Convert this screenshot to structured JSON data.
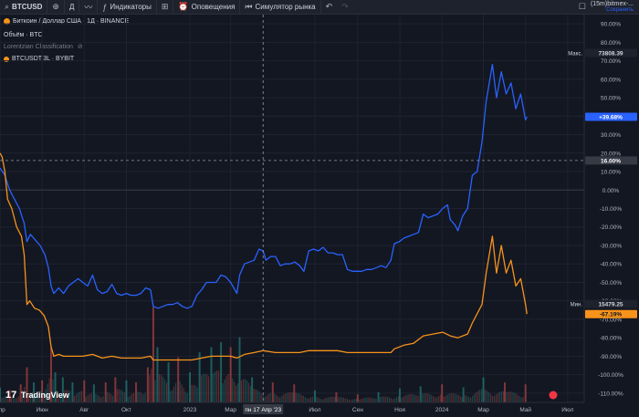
{
  "toolbar": {
    "symbol": "BTCUSD",
    "add_icon": "plus-circle-icon",
    "interval": "Д",
    "chart_type_icon": "line-chart-icon",
    "indicators_label": "Индикаторы",
    "templates_icon": "grid-icon",
    "alerts_label": "Оповещения",
    "replay_label": "Симулятор рынка",
    "undo_icon": "undo-icon",
    "redo_icon": "redo-icon",
    "layout_icon": "square-icon",
    "account_name": "(15m)bitmex-...",
    "save_label": "Сохранить"
  },
  "legend": {
    "main": "Биткоин / Доллар США · 1Д · BINANCE",
    "volume": "Объём · BTC",
    "indicator": "Lorentzian Classification",
    "compare": "BTCUSDT.3L · BYBIT"
  },
  "badges": {
    "max_label": "Макс.",
    "max_value": "73808.39",
    "min_label": "Мин.",
    "min_value": "15479.25",
    "blue_value": "+39.68%",
    "orange_value": "-67.19%",
    "crosshair_value": "16.00%",
    "crosshair_date": "пн 17 Апр '23"
  },
  "branding": "TradingView",
  "chart_data": {
    "type": "line",
    "yaxis_scale": "percent",
    "ylim": [
      -115,
      95
    ],
    "yticks": [
      "90.00%",
      "80.00%",
      "70.00%",
      "60.00%",
      "50.00%",
      "40.00%",
      "30.00%",
      "20.00%",
      "10.00%",
      "0.00%",
      "-10.00%",
      "-20.00%",
      "-30.00%",
      "-40.00%",
      "-50.00%",
      "-60.00%",
      "-70.00%",
      "-80.00%",
      "-90.00%",
      "-100.00%",
      "-110.00%"
    ],
    "ytick_values": [
      90,
      80,
      70,
      60,
      50,
      40,
      30,
      20,
      10,
      0,
      -10,
      -20,
      -30,
      -40,
      -50,
      -60,
      -70,
      -80,
      -90,
      -100,
      -110
    ],
    "x_range": [
      "2022-04-01",
      "2024-07-25"
    ],
    "xticks": [
      {
        "label": "Апр",
        "date": "2022-04-01"
      },
      {
        "label": "Июн",
        "date": "2022-06-01"
      },
      {
        "label": "Авг",
        "date": "2022-08-01"
      },
      {
        "label": "Окт",
        "date": "2022-10-01"
      },
      {
        "label": "2023",
        "date": "2023-01-01"
      },
      {
        "label": "Мар",
        "date": "2023-03-01"
      },
      {
        "label": "Июл",
        "date": "2023-07-01"
      },
      {
        "label": "Сен",
        "date": "2023-09-01"
      },
      {
        "label": "Ноя",
        "date": "2023-11-01"
      },
      {
        "label": "2024",
        "date": "2024-01-01"
      },
      {
        "label": "Мар",
        "date": "2024-03-01"
      },
      {
        "label": "Май",
        "date": "2024-05-01"
      },
      {
        "label": "Июл",
        "date": "2024-07-01"
      }
    ],
    "crosshair": {
      "date": "2023-04-17",
      "value": 16
    },
    "grid": true,
    "series": [
      {
        "name": "Биткоин / Доллар США",
        "color": "#2962ff",
        "points": [
          [
            "2022-04-01",
            12
          ],
          [
            "2022-04-08",
            8
          ],
          [
            "2022-04-15",
            0
          ],
          [
            "2022-04-22",
            -5
          ],
          [
            "2022-04-29",
            -10
          ],
          [
            "2022-05-06",
            -18
          ],
          [
            "2022-05-10",
            -28
          ],
          [
            "2022-05-15",
            -24
          ],
          [
            "2022-05-22",
            -27
          ],
          [
            "2022-05-29",
            -30
          ],
          [
            "2022-06-05",
            -35
          ],
          [
            "2022-06-10",
            -42
          ],
          [
            "2022-06-14",
            -52
          ],
          [
            "2022-06-18",
            -56
          ],
          [
            "2022-06-25",
            -53
          ],
          [
            "2022-07-02",
            -56
          ],
          [
            "2022-07-09",
            -52
          ],
          [
            "2022-07-16",
            -50
          ],
          [
            "2022-07-23",
            -48
          ],
          [
            "2022-07-30",
            -50
          ],
          [
            "2022-08-06",
            -52
          ],
          [
            "2022-08-13",
            -46
          ],
          [
            "2022-08-20",
            -54
          ],
          [
            "2022-08-27",
            -56
          ],
          [
            "2022-09-03",
            -55
          ],
          [
            "2022-09-10",
            -51
          ],
          [
            "2022-09-17",
            -56
          ],
          [
            "2022-09-24",
            -57
          ],
          [
            "2022-10-01",
            -56
          ],
          [
            "2022-10-08",
            -57
          ],
          [
            "2022-10-15",
            -57
          ],
          [
            "2022-10-22",
            -56
          ],
          [
            "2022-10-29",
            -53
          ],
          [
            "2022-11-05",
            -54
          ],
          [
            "2022-11-09",
            -63
          ],
          [
            "2022-11-16",
            -64
          ],
          [
            "2022-11-23",
            -63
          ],
          [
            "2022-11-30",
            -62
          ],
          [
            "2022-12-07",
            -62
          ],
          [
            "2022-12-14",
            -61
          ],
          [
            "2022-12-21",
            -63
          ],
          [
            "2022-12-28",
            -64
          ],
          [
            "2023-01-04",
            -63
          ],
          [
            "2023-01-11",
            -57
          ],
          [
            "2023-01-18",
            -54
          ],
          [
            "2023-01-25",
            -50
          ],
          [
            "2023-02-01",
            -50
          ],
          [
            "2023-02-08",
            -50
          ],
          [
            "2023-02-15",
            -46
          ],
          [
            "2023-02-22",
            -47
          ],
          [
            "2023-03-01",
            -50
          ],
          [
            "2023-03-10",
            -56
          ],
          [
            "2023-03-14",
            -46
          ],
          [
            "2023-03-21",
            -40
          ],
          [
            "2023-03-28",
            -39
          ],
          [
            "2023-04-04",
            -38
          ],
          [
            "2023-04-11",
            -32
          ],
          [
            "2023-04-17",
            -33
          ],
          [
            "2023-04-21",
            -38
          ],
          [
            "2023-04-28",
            -36
          ],
          [
            "2023-05-05",
            -36
          ],
          [
            "2023-05-12",
            -41
          ],
          [
            "2023-05-19",
            -40
          ],
          [
            "2023-05-26",
            -40
          ],
          [
            "2023-06-02",
            -39
          ],
          [
            "2023-06-09",
            -41
          ],
          [
            "2023-06-15",
            -44
          ],
          [
            "2023-06-22",
            -33
          ],
          [
            "2023-06-29",
            -32
          ],
          [
            "2023-07-06",
            -33
          ],
          [
            "2023-07-13",
            -31
          ],
          [
            "2023-07-20",
            -34
          ],
          [
            "2023-07-27",
            -34
          ],
          [
            "2023-08-03",
            -35
          ],
          [
            "2023-08-10",
            -35
          ],
          [
            "2023-08-17",
            -43
          ],
          [
            "2023-08-24",
            -44
          ],
          [
            "2023-08-31",
            -44
          ],
          [
            "2023-09-07",
            -44
          ],
          [
            "2023-09-14",
            -43
          ],
          [
            "2023-09-21",
            -43
          ],
          [
            "2023-09-28",
            -42
          ],
          [
            "2023-10-05",
            -41
          ],
          [
            "2023-10-12",
            -42
          ],
          [
            "2023-10-19",
            -38
          ],
          [
            "2023-10-24",
            -29
          ],
          [
            "2023-10-31",
            -28
          ],
          [
            "2023-11-07",
            -26
          ],
          [
            "2023-11-14",
            -25
          ],
          [
            "2023-11-21",
            -24
          ],
          [
            "2023-11-28",
            -23
          ],
          [
            "2023-12-05",
            -13
          ],
          [
            "2023-12-12",
            -15
          ],
          [
            "2023-12-19",
            -14
          ],
          [
            "2023-12-26",
            -13
          ],
          [
            "2024-01-02",
            -10
          ],
          [
            "2024-01-09",
            -8
          ],
          [
            "2024-01-13",
            -16
          ],
          [
            "2024-01-20",
            -19
          ],
          [
            "2024-01-24",
            -22
          ],
          [
            "2024-01-31",
            -14
          ],
          [
            "2024-02-07",
            -10
          ],
          [
            "2024-02-14",
            8
          ],
          [
            "2024-02-21",
            10
          ],
          [
            "2024-02-28",
            26
          ],
          [
            "2024-03-05",
            48
          ],
          [
            "2024-03-14",
            68
          ],
          [
            "2024-03-20",
            50
          ],
          [
            "2024-03-27",
            64
          ],
          [
            "2024-04-03",
            52
          ],
          [
            "2024-04-10",
            58
          ],
          [
            "2024-04-17",
            44
          ],
          [
            "2024-04-24",
            52
          ],
          [
            "2024-05-01",
            38
          ],
          [
            "2024-05-03",
            39.68
          ]
        ]
      },
      {
        "name": "BTCUSDT.3L",
        "color": "#f7931a",
        "points": [
          [
            "2022-04-01",
            20
          ],
          [
            "2022-04-04",
            18
          ],
          [
            "2022-04-08",
            10
          ],
          [
            "2022-04-12",
            -5
          ],
          [
            "2022-04-18",
            -10
          ],
          [
            "2022-04-25",
            -20
          ],
          [
            "2022-05-02",
            -25
          ],
          [
            "2022-05-06",
            -35
          ],
          [
            "2022-05-10",
            -62
          ],
          [
            "2022-05-14",
            -60
          ],
          [
            "2022-05-21",
            -64
          ],
          [
            "2022-05-28",
            -65
          ],
          [
            "2022-06-04",
            -68
          ],
          [
            "2022-06-10",
            -74
          ],
          [
            "2022-06-14",
            -85
          ],
          [
            "2022-06-18",
            -90
          ],
          [
            "2022-06-25",
            -89
          ],
          [
            "2022-07-02",
            -90
          ],
          [
            "2022-07-16",
            -90
          ],
          [
            "2022-07-30",
            -90
          ],
          [
            "2022-08-13",
            -89
          ],
          [
            "2022-08-27",
            -91
          ],
          [
            "2022-09-10",
            -90
          ],
          [
            "2022-09-24",
            -91
          ],
          [
            "2022-10-08",
            -91
          ],
          [
            "2022-10-22",
            -91
          ],
          [
            "2022-11-05",
            -90
          ],
          [
            "2022-11-09",
            -92
          ],
          [
            "2022-11-23",
            -92
          ],
          [
            "2022-12-07",
            -92
          ],
          [
            "2022-12-21",
            -92
          ],
          [
            "2023-01-04",
            -92
          ],
          [
            "2023-01-18",
            -91
          ],
          [
            "2023-02-01",
            -90
          ],
          [
            "2023-02-15",
            -90
          ],
          [
            "2023-03-01",
            -90
          ],
          [
            "2023-03-10",
            -91
          ],
          [
            "2023-03-21",
            -89
          ],
          [
            "2023-04-04",
            -88
          ],
          [
            "2023-04-17",
            -87
          ],
          [
            "2023-05-05",
            -88
          ],
          [
            "2023-05-19",
            -88
          ],
          [
            "2023-06-09",
            -88
          ],
          [
            "2023-06-22",
            -87
          ],
          [
            "2023-07-13",
            -87
          ],
          [
            "2023-08-03",
            -87
          ],
          [
            "2023-08-17",
            -88
          ],
          [
            "2023-09-07",
            -88
          ],
          [
            "2023-09-28",
            -88
          ],
          [
            "2023-10-19",
            -88
          ],
          [
            "2023-10-24",
            -86
          ],
          [
            "2023-11-07",
            -84
          ],
          [
            "2023-11-21",
            -83
          ],
          [
            "2023-12-05",
            -79
          ],
          [
            "2023-12-19",
            -78
          ],
          [
            "2024-01-02",
            -77
          ],
          [
            "2024-01-13",
            -79
          ],
          [
            "2024-01-24",
            -80
          ],
          [
            "2024-02-07",
            -78
          ],
          [
            "2024-02-14",
            -72
          ],
          [
            "2024-02-28",
            -62
          ],
          [
            "2024-03-05",
            -45
          ],
          [
            "2024-03-14",
            -25
          ],
          [
            "2024-03-20",
            -45
          ],
          [
            "2024-03-27",
            -30
          ],
          [
            "2024-04-03",
            -45
          ],
          [
            "2024-04-10",
            -38
          ],
          [
            "2024-04-17",
            -52
          ],
          [
            "2024-04-24",
            -48
          ],
          [
            "2024-05-01",
            -62
          ],
          [
            "2024-05-03",
            -67.19
          ]
        ]
      }
    ],
    "volume": {
      "name": "Объём",
      "colors": {
        "up": "#26a69a",
        "down": "#ef5350"
      },
      "max_pct_of_pane": 1,
      "bars": [
        [
          "2022-04-01",
          0.15,
          1
        ],
        [
          "2022-04-15",
          0.12,
          0
        ],
        [
          "2022-05-01",
          0.18,
          0
        ],
        [
          "2022-05-10",
          0.35,
          0
        ],
        [
          "2022-05-20",
          0.2,
          1
        ],
        [
          "2022-06-01",
          0.22,
          0
        ],
        [
          "2022-06-14",
          0.55,
          0
        ],
        [
          "2022-06-20",
          0.3,
          1
        ],
        [
          "2022-07-01",
          0.25,
          1
        ],
        [
          "2022-07-15",
          0.2,
          1
        ],
        [
          "2022-08-01",
          0.22,
          0
        ],
        [
          "2022-08-15",
          0.18,
          1
        ],
        [
          "2022-09-01",
          0.2,
          0
        ],
        [
          "2022-09-15",
          0.25,
          0
        ],
        [
          "2022-10-01",
          0.22,
          1
        ],
        [
          "2022-10-15",
          0.2,
          0
        ],
        [
          "2022-11-01",
          0.35,
          0
        ],
        [
          "2022-11-09",
          0.95,
          0
        ],
        [
          "2022-11-15",
          0.55,
          1
        ],
        [
          "2022-12-01",
          0.4,
          1
        ],
        [
          "2022-12-15",
          0.45,
          0
        ],
        [
          "2023-01-01",
          0.3,
          1
        ],
        [
          "2023-01-15",
          0.5,
          1
        ],
        [
          "2023-02-01",
          0.55,
          1
        ],
        [
          "2023-02-15",
          0.6,
          1
        ],
        [
          "2023-03-01",
          0.55,
          0
        ],
        [
          "2023-03-14",
          0.65,
          1
        ],
        [
          "2023-04-01",
          0.25,
          1
        ],
        [
          "2023-05-01",
          0.2,
          0
        ],
        [
          "2023-06-01",
          0.18,
          0
        ],
        [
          "2023-07-01",
          0.12,
          1
        ],
        [
          "2023-08-01",
          0.1,
          0
        ],
        [
          "2023-09-01",
          0.08,
          0
        ],
        [
          "2023-10-01",
          0.1,
          1
        ],
        [
          "2023-11-01",
          0.14,
          1
        ],
        [
          "2023-12-01",
          0.16,
          1
        ],
        [
          "2024-01-01",
          0.18,
          0
        ],
        [
          "2024-02-01",
          0.15,
          1
        ],
        [
          "2024-03-01",
          0.25,
          1
        ],
        [
          "2024-04-01",
          0.2,
          0
        ],
        [
          "2024-05-01",
          0.18,
          0
        ]
      ]
    }
  }
}
